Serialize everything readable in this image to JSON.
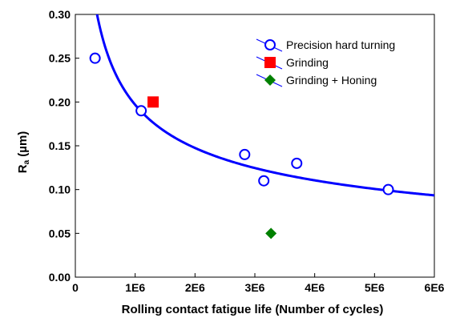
{
  "chart_data": {
    "type": "scatter",
    "title": "",
    "xlabel": "Rolling contact fatigue life (Number of cycles)",
    "ylabel_main": "R",
    "ylabel_sub": "a",
    "ylabel_unit": " (µm)",
    "xlim": [
      0,
      6000000
    ],
    "ylim": [
      0,
      0.3
    ],
    "x_ticks": [
      0,
      1000000,
      2000000,
      3000000,
      4000000,
      5000000,
      6000000
    ],
    "x_tick_labels": [
      "0",
      "1E6",
      "2E6",
      "3E6",
      "4E6",
      "5E6",
      "6E6"
    ],
    "y_ticks": [
      0,
      0.05,
      0.1,
      0.15,
      0.2,
      0.25,
      0.3
    ],
    "y_tick_labels": [
      "0.00",
      "0.05",
      "0.10",
      "0.15",
      "0.20",
      "0.25",
      "0.30"
    ],
    "grid": false,
    "legend_position": "top-right",
    "series": [
      {
        "name": "Precision hard turning",
        "marker": "circle-open",
        "color": "#0000ff",
        "points": [
          [
            330000,
            0.25
          ],
          [
            1100000,
            0.19
          ],
          [
            2830000,
            0.14
          ],
          [
            3150000,
            0.11
          ],
          [
            3700000,
            0.13
          ],
          [
            5230000,
            0.1
          ]
        ]
      },
      {
        "name": "Grinding",
        "marker": "square",
        "color": "#ff0000",
        "points": [
          [
            1300000,
            0.2
          ]
        ]
      },
      {
        "name": "Grinding + Honing",
        "marker": "diamond",
        "color": "#008000",
        "points": [
          [
            3270000,
            0.05
          ]
        ]
      }
    ],
    "fit_curve": {
      "color": "#0000ff",
      "model": "power",
      "a": 0.1968,
      "b": -0.416,
      "x_unit": 1000000,
      "x_range": [
        80000,
        6000000
      ]
    }
  }
}
